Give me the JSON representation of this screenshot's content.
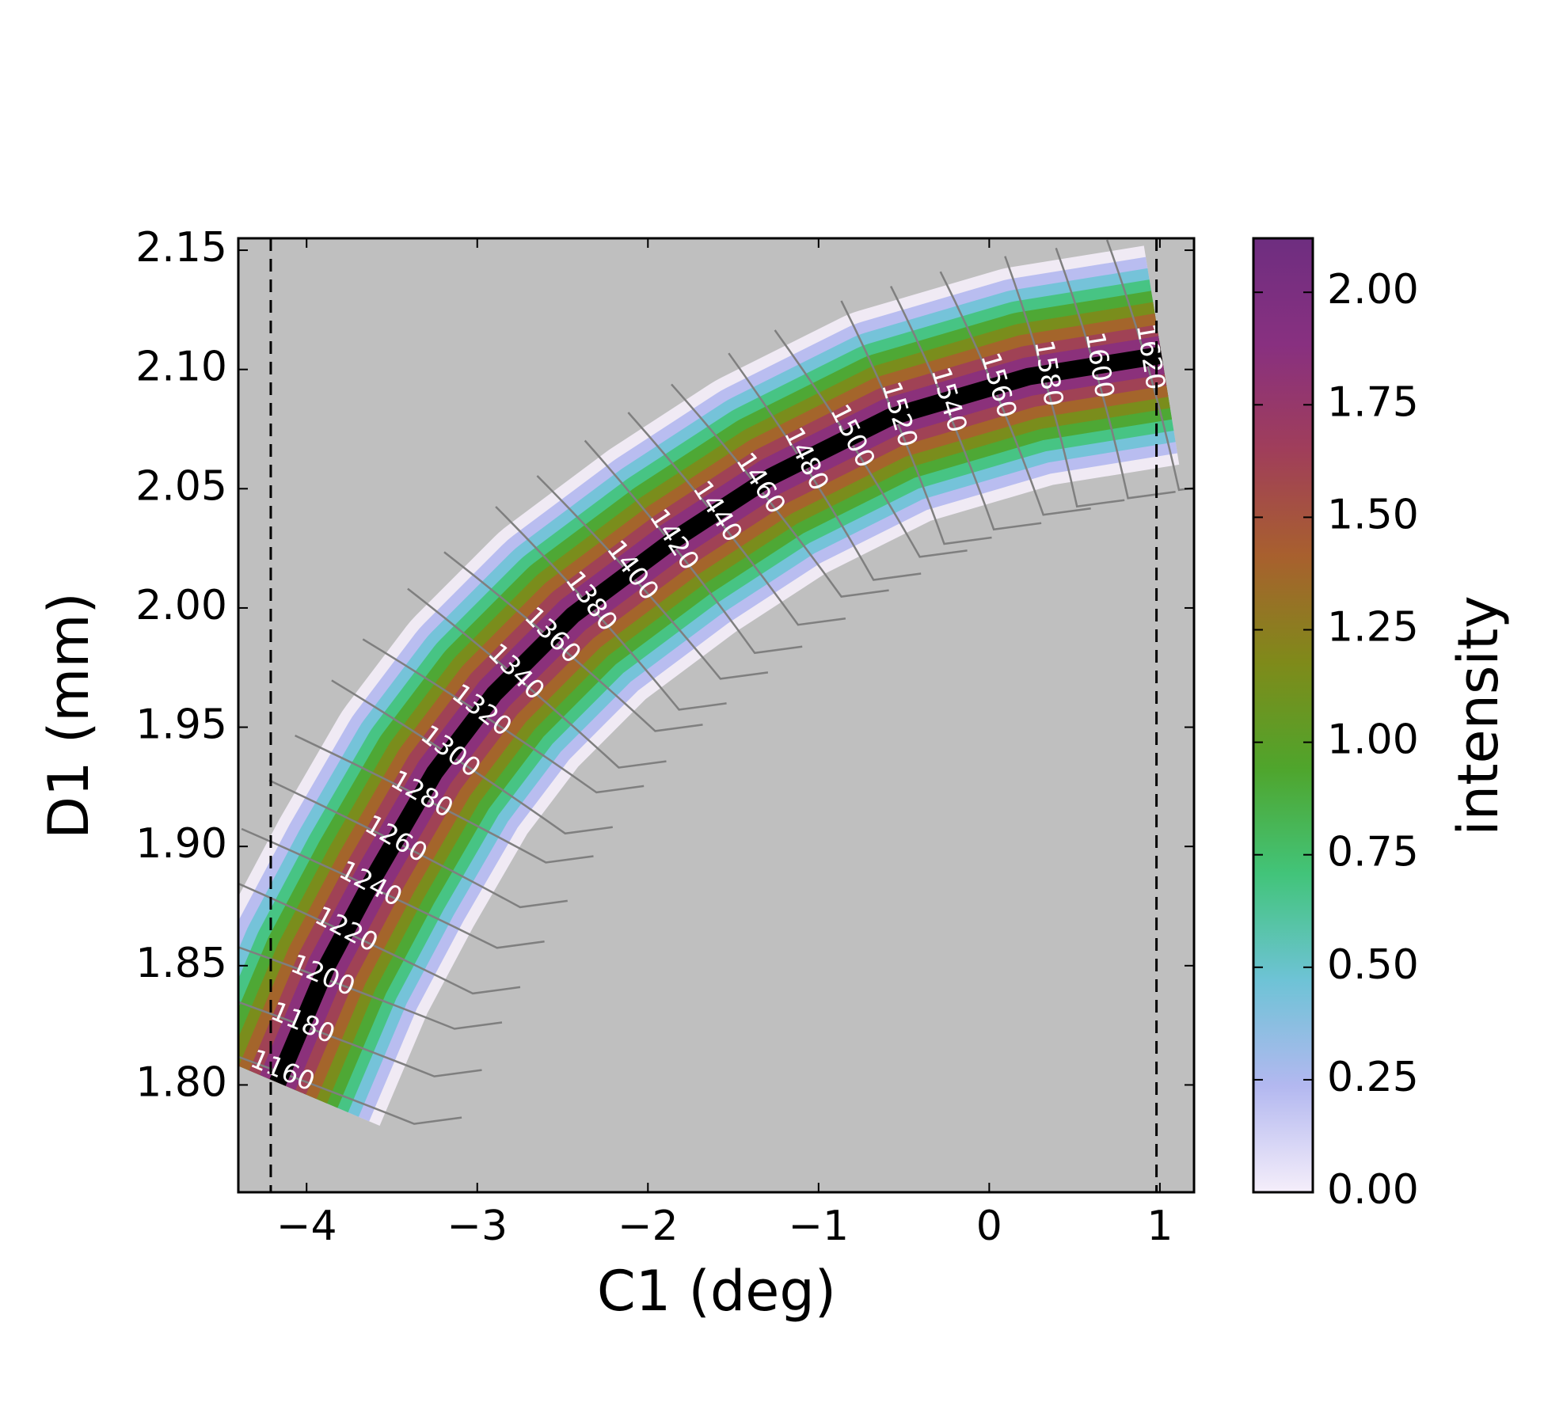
{
  "chart_data": {
    "type": "heatmap",
    "xlabel": "C1 (deg)",
    "ylabel": "D1 (mm)",
    "xlim": [
      -4.4,
      1.2
    ],
    "ylim": [
      1.755,
      2.155
    ],
    "xticks": [
      {
        "value": -4,
        "label": "−4"
      },
      {
        "value": -3,
        "label": "−3"
      },
      {
        "value": -2,
        "label": "−2"
      },
      {
        "value": -1,
        "label": "−1"
      },
      0,
      1
    ],
    "yticks": [
      {
        "value": 1.8,
        "label": "1.80"
      },
      1.85,
      {
        "value": 1.9,
        "label": "1.90"
      },
      1.95,
      {
        "value": 2.0,
        "label": "2.00"
      },
      2.05,
      {
        "value": 2.1,
        "label": "2.10"
      },
      2.15
    ],
    "background": "#bfbfbf",
    "x": [
      -4.17,
      -3.88,
      -3.59,
      -3.25,
      -2.9,
      -2.44,
      -1.86,
      -1.28,
      -0.58,
      0.23,
      1.01
    ],
    "series": [
      {
        "color": "#000000",
        "values": [
          1.801,
          1.85,
          1.889,
          1.931,
          1.964,
          1.997,
          2.028,
          2.055,
          2.08,
          2.097,
          2.106
        ]
      }
    ],
    "vlines": [
      -4.21,
      0.98
    ],
    "contour_levels": [
      1160,
      1180,
      1200,
      1220,
      1240,
      1260,
      1280,
      1300,
      1320,
      1340,
      1360,
      1380,
      1400,
      1420,
      1440,
      1460,
      1480,
      1500,
      1520,
      1540,
      1560,
      1580,
      1600,
      1620
    ],
    "contour_color": "#7f7f7f",
    "colorbar": {
      "label": "intensity",
      "clim": [
        0,
        2.12
      ],
      "ticks": [
        {
          "value": 0,
          "label": "0.00"
        },
        0.25,
        {
          "value": 0.5,
          "label": "0.50"
        },
        0.75,
        {
          "value": 1.0,
          "label": "1.00"
        },
        1.25,
        {
          "value": 1.5,
          "label": "1.50"
        },
        1.75,
        {
          "value": 2.0,
          "label": "2.00"
        }
      ],
      "colormap": [
        "#f5eefa",
        "#b3b8f0",
        "#6ec3d6",
        "#42c47a",
        "#4fa52c",
        "#7f8a1a",
        "#a8602e",
        "#a03e5a",
        "#883080",
        "#6e2e80"
      ]
    }
  }
}
